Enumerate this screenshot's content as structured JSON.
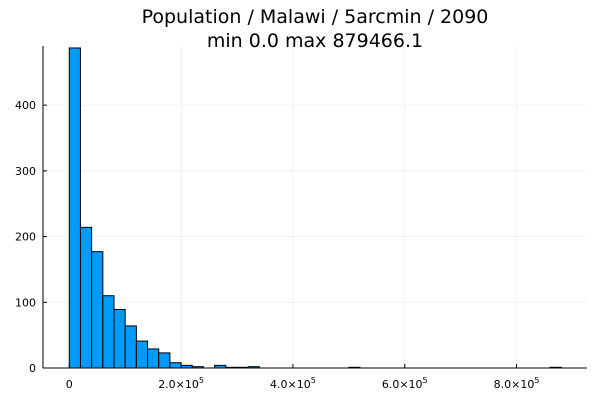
{
  "chart_data": {
    "type": "bar",
    "title_line1": "Population / Malawi / 5arcmin / 2090",
    "title_line2": "min 0.0  max 879466.1",
    "xlabel": "",
    "ylabel": "",
    "bar_color": "#009AF9",
    "grid": true,
    "legend": "none",
    "xlim": [
      -47000,
      926000
    ],
    "ylim": [
      0,
      490
    ],
    "bin_width": 20000,
    "bins": [
      {
        "x0": 0,
        "x1": 20000,
        "count": 487
      },
      {
        "x0": 20000,
        "x1": 40000,
        "count": 214
      },
      {
        "x0": 40000,
        "x1": 60000,
        "count": 177
      },
      {
        "x0": 60000,
        "x1": 80000,
        "count": 110
      },
      {
        "x0": 80000,
        "x1": 100000,
        "count": 89
      },
      {
        "x0": 100000,
        "x1": 120000,
        "count": 64
      },
      {
        "x0": 120000,
        "x1": 140000,
        "count": 41
      },
      {
        "x0": 140000,
        "x1": 160000,
        "count": 29
      },
      {
        "x0": 160000,
        "x1": 180000,
        "count": 23
      },
      {
        "x0": 180000,
        "x1": 200000,
        "count": 8
      },
      {
        "x0": 200000,
        "x1": 220000,
        "count": 4
      },
      {
        "x0": 220000,
        "x1": 240000,
        "count": 2
      },
      {
        "x0": 240000,
        "x1": 260000,
        "count": 0
      },
      {
        "x0": 260000,
        "x1": 280000,
        "count": 4
      },
      {
        "x0": 280000,
        "x1": 300000,
        "count": 1
      },
      {
        "x0": 300000,
        "x1": 320000,
        "count": 1
      },
      {
        "x0": 320000,
        "x1": 340000,
        "count": 2
      },
      {
        "x0": 500000,
        "x1": 520000,
        "count": 1
      },
      {
        "x0": 860000,
        "x1": 880000,
        "count": 1
      }
    ],
    "x_ticks": [
      {
        "value": 0,
        "base": "0",
        "exp": ""
      },
      {
        "value": 200000,
        "base": "2.0×10",
        "exp": "5"
      },
      {
        "value": 400000,
        "base": "4.0×10",
        "exp": "5"
      },
      {
        "value": 600000,
        "base": "6.0×10",
        "exp": "5"
      },
      {
        "value": 800000,
        "base": "8.0×10",
        "exp": "5"
      }
    ],
    "y_ticks": [
      {
        "value": 0,
        "label": "0"
      },
      {
        "value": 100,
        "label": "100"
      },
      {
        "value": 200,
        "label": "200"
      },
      {
        "value": 300,
        "label": "300"
      },
      {
        "value": 400,
        "label": "400"
      }
    ]
  }
}
